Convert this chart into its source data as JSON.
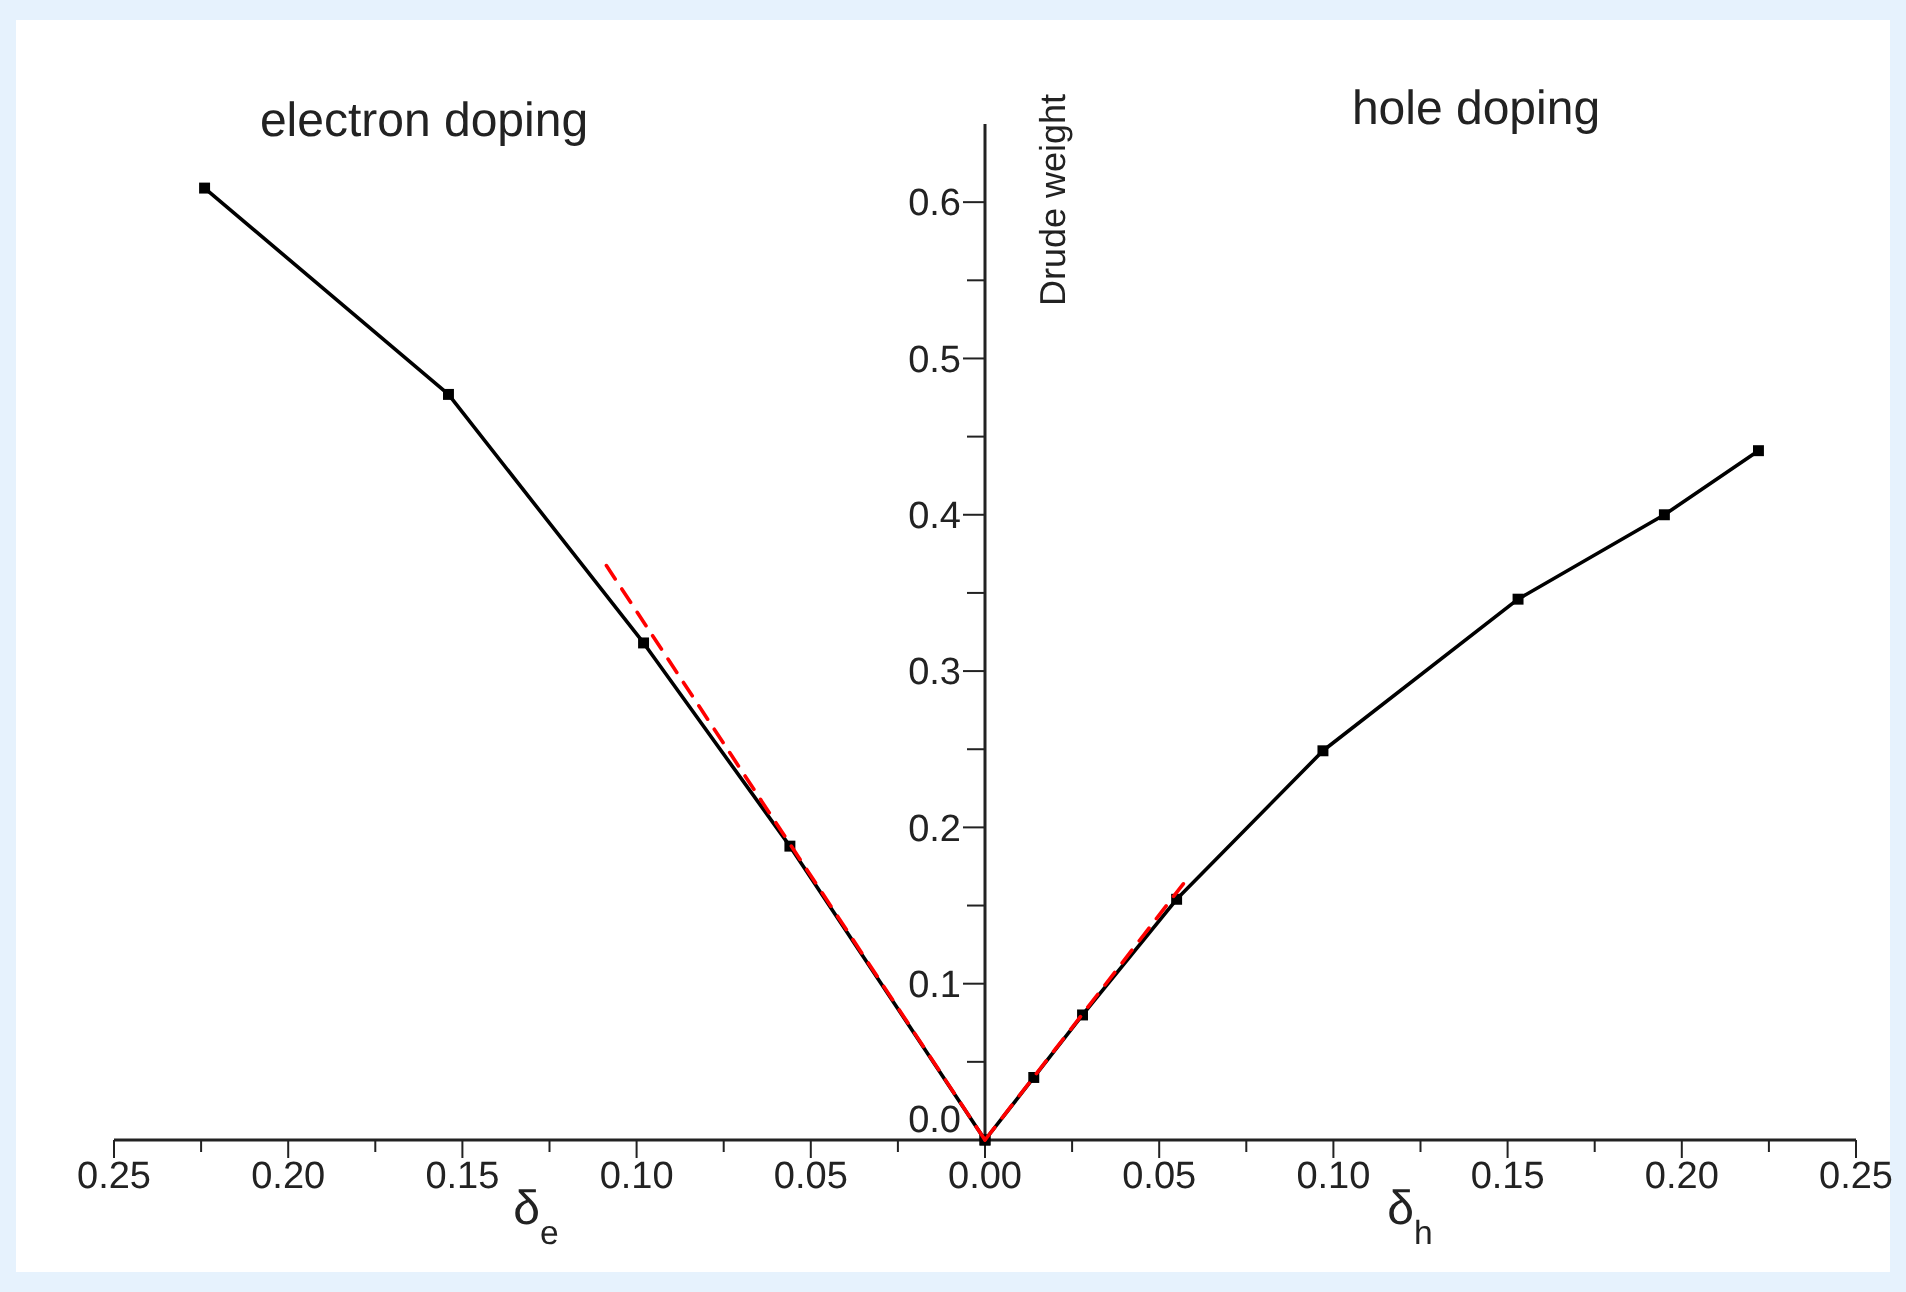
{
  "chart_data": {
    "type": "line",
    "ylabel": "Drude weight",
    "annotations": [
      "electron doping",
      "hole doping",
      "δ$_{e}$",
      "δ$_{h}$"
    ],
    "xlim": [
      -0.25,
      0.25
    ],
    "xticks": [
      {
        "value": -0.25,
        "label": "0.25"
      },
      {
        "value": -0.225,
        "label": null
      },
      {
        "value": -0.2,
        "label": "0.20"
      },
      {
        "value": -0.175,
        "label": null
      },
      {
        "value": -0.15,
        "label": "0.15"
      },
      {
        "value": -0.125,
        "label": null
      },
      {
        "value": -0.1,
        "label": "0.10"
      },
      {
        "value": -0.075,
        "label": null
      },
      {
        "value": -0.05,
        "label": "0.05"
      },
      {
        "value": -0.025,
        "label": null
      },
      {
        "value": 0,
        "label": "0.00"
      },
      {
        "value": 0.025,
        "label": null
      },
      {
        "value": 0.05,
        "label": "0.05"
      },
      {
        "value": 0.075,
        "label": null
      },
      {
        "value": 0.1,
        "label": "0.10"
      },
      {
        "value": 0.125,
        "label": null
      },
      {
        "value": 0.15,
        "label": "0.15"
      },
      {
        "value": 0.175,
        "label": null
      },
      {
        "value": 0.2,
        "label": "0.20"
      },
      {
        "value": 0.225,
        "label": null
      },
      {
        "value": 0.25,
        "label": "0.25"
      }
    ],
    "ylim": [
      0,
      0.65
    ],
    "yticks": [
      {
        "value": 0,
        "label": "0.0"
      },
      {
        "value": 0.05,
        "label": null
      },
      {
        "value": 0.1,
        "label": "0.1"
      },
      {
        "value": 0.15,
        "label": null
      },
      {
        "value": 0.2,
        "label": "0.2"
      },
      {
        "value": 0.25,
        "label": null
      },
      {
        "value": 0.3,
        "label": "0.3"
      },
      {
        "value": 0.35,
        "label": null
      },
      {
        "value": 0.4,
        "label": "0.4"
      },
      {
        "value": 0.45,
        "label": null
      },
      {
        "value": 0.5,
        "label": "0.5"
      },
      {
        "value": 0.55,
        "label": null
      },
      {
        "value": 0.6,
        "label": "0.6"
      }
    ],
    "grid": false,
    "series": [
      {
        "color": "#000000",
        "marker": "square",
        "line_style": "solid",
        "x": [
          -0.224,
          -0.154,
          -0.098,
          -0.056,
          0
        ],
        "values": [
          0.609,
          0.477,
          0.318,
          0.188,
          0
        ]
      },
      {
        "color": "#000000",
        "marker": "square",
        "line_style": "solid",
        "x": [
          0,
          0.014,
          0.028,
          0.055,
          0.097,
          0.153,
          0.195,
          0.222
        ],
        "values": [
          0,
          0.04,
          0.08,
          0.154,
          0.249,
          0.346,
          0.4,
          0.441
        ]
      },
      {
        "color": "#ff0000",
        "marker": "none",
        "line_style": "dashed",
        "x": [
          0,
          -0.11
        ],
        "values": [
          0,
          0.372
        ]
      },
      {
        "color": "#ff0000",
        "marker": "none",
        "line_style": "dashed",
        "x": [
          0,
          0.058
        ],
        "values": [
          0,
          0.167
        ]
      }
    ]
  }
}
